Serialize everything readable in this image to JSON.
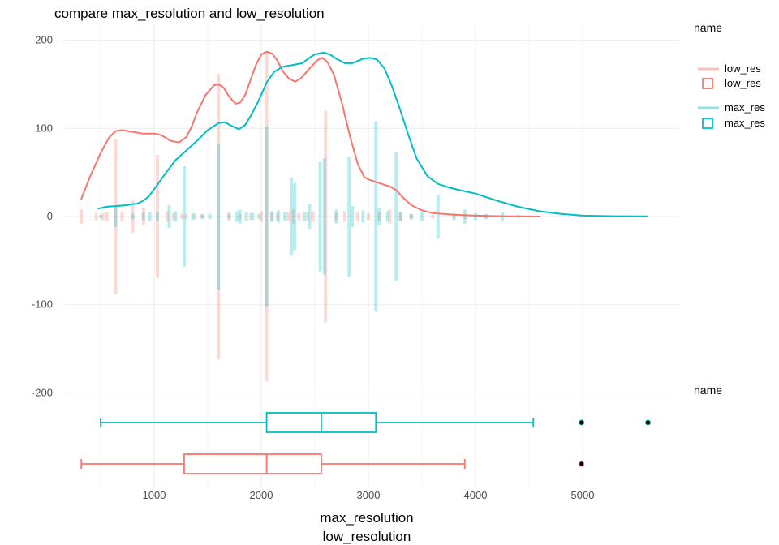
{
  "chart_data": {
    "type": "density_strip_box",
    "title": "compare  max_resolution and low_resolution",
    "xlabel_top": "max_resolution",
    "xlabel_bottom": "low_resolution",
    "xlim": [
      300,
      5700
    ],
    "ylim": [
      -200,
      200
    ],
    "x_ticks": [
      "1000",
      "2000",
      "3000",
      "4000",
      "5000"
    ],
    "y_ticks": [
      "200",
      "100",
      "0",
      "-100",
      "-200"
    ],
    "grid": true,
    "legend": {
      "position": "right",
      "title_top": "name",
      "title_bottom": "name",
      "entries": [
        "low_res",
        "low_res",
        "max_res",
        "max_res"
      ]
    },
    "colors": {
      "low_res": "#F8766D",
      "max_res": "#00BFC4",
      "outlier": "#000000"
    },
    "density": [
      {
        "name": "low_res",
        "points": [
          [
            320,
            20
          ],
          [
            400,
            45
          ],
          [
            500,
            72
          ],
          [
            580,
            90
          ],
          [
            640,
            97
          ],
          [
            700,
            98
          ],
          [
            800,
            96
          ],
          [
            900,
            94
          ],
          [
            1000,
            94
          ],
          [
            1050,
            93
          ],
          [
            1100,
            90
          ],
          [
            1150,
            86
          ],
          [
            1230,
            84
          ],
          [
            1300,
            90
          ],
          [
            1350,
            102
          ],
          [
            1400,
            118
          ],
          [
            1480,
            138
          ],
          [
            1560,
            149
          ],
          [
            1600,
            150
          ],
          [
            1650,
            146
          ],
          [
            1700,
            136
          ],
          [
            1760,
            128
          ],
          [
            1800,
            129
          ],
          [
            1850,
            138
          ],
          [
            1900,
            155
          ],
          [
            1950,
            172
          ],
          [
            2000,
            184
          ],
          [
            2050,
            187
          ],
          [
            2100,
            185
          ],
          [
            2150,
            177
          ],
          [
            2200,
            165
          ],
          [
            2260,
            156
          ],
          [
            2320,
            153
          ],
          [
            2380,
            158
          ],
          [
            2450,
            168
          ],
          [
            2530,
            178
          ],
          [
            2570,
            180
          ],
          [
            2620,
            175
          ],
          [
            2680,
            160
          ],
          [
            2750,
            130
          ],
          [
            2830,
            90
          ],
          [
            2900,
            60
          ],
          [
            2960,
            45
          ],
          [
            3000,
            42
          ],
          [
            3100,
            38
          ],
          [
            3200,
            34
          ],
          [
            3260,
            30
          ],
          [
            3320,
            22
          ],
          [
            3400,
            13
          ],
          [
            3500,
            7
          ],
          [
            3600,
            4
          ],
          [
            3800,
            2
          ],
          [
            4000,
            1
          ],
          [
            4200,
            0.5
          ],
          [
            4600,
            0
          ]
        ]
      },
      {
        "name": "max_res",
        "points": [
          [
            480,
            9
          ],
          [
            550,
            11
          ],
          [
            650,
            12
          ],
          [
            750,
            13
          ],
          [
            850,
            15
          ],
          [
            900,
            18
          ],
          [
            950,
            23
          ],
          [
            1000,
            31
          ],
          [
            1100,
            48
          ],
          [
            1200,
            64
          ],
          [
            1300,
            75
          ],
          [
            1400,
            86
          ],
          [
            1500,
            98
          ],
          [
            1600,
            106
          ],
          [
            1660,
            107
          ],
          [
            1720,
            103
          ],
          [
            1790,
            99
          ],
          [
            1850,
            104
          ],
          [
            1900,
            114
          ],
          [
            1970,
            130
          ],
          [
            2050,
            152
          ],
          [
            2120,
            164
          ],
          [
            2200,
            170
          ],
          [
            2300,
            172
          ],
          [
            2380,
            174
          ],
          [
            2450,
            180
          ],
          [
            2500,
            184
          ],
          [
            2580,
            186
          ],
          [
            2640,
            184
          ],
          [
            2700,
            179
          ],
          [
            2780,
            174
          ],
          [
            2850,
            174
          ],
          [
            2950,
            179
          ],
          [
            3020,
            180
          ],
          [
            3080,
            178
          ],
          [
            3150,
            168
          ],
          [
            3220,
            148
          ],
          [
            3300,
            120
          ],
          [
            3380,
            90
          ],
          [
            3450,
            66
          ],
          [
            3550,
            46
          ],
          [
            3650,
            37
          ],
          [
            3750,
            33
          ],
          [
            3850,
            30
          ],
          [
            4000,
            26
          ],
          [
            4200,
            18
          ],
          [
            4400,
            11
          ],
          [
            4600,
            6
          ],
          [
            4800,
            3
          ],
          [
            5000,
            1
          ],
          [
            5300,
            0.4
          ],
          [
            5600,
            0.2
          ]
        ]
      }
    ],
    "strips": [
      {
        "name": "low_res",
        "marks": [
          [
            320,
            8
          ],
          [
            460,
            4
          ],
          [
            520,
            4
          ],
          [
            560,
            5
          ],
          [
            640,
            88
          ],
          [
            700,
            6
          ],
          [
            800,
            18
          ],
          [
            900,
            10
          ],
          [
            1030,
            70
          ],
          [
            1120,
            6
          ],
          [
            1180,
            4
          ],
          [
            1260,
            3
          ],
          [
            1300,
            3
          ],
          [
            1380,
            3
          ],
          [
            1450,
            2
          ],
          [
            1600,
            162
          ],
          [
            1700,
            5
          ],
          [
            1800,
            3
          ],
          [
            1900,
            4
          ],
          [
            2000,
            6
          ],
          [
            2050,
            187
          ],
          [
            2100,
            5
          ],
          [
            2150,
            4
          ],
          [
            2250,
            5
          ],
          [
            2300,
            8
          ],
          [
            2350,
            4
          ],
          [
            2430,
            5
          ],
          [
            2480,
            6
          ],
          [
            2600,
            120
          ],
          [
            2700,
            4
          ],
          [
            2780,
            6
          ],
          [
            2900,
            5
          ],
          [
            3000,
            4
          ],
          [
            3100,
            5
          ],
          [
            3200,
            8
          ],
          [
            3300,
            5
          ],
          [
            3400,
            3
          ],
          [
            3600,
            2
          ],
          [
            3800,
            2
          ],
          [
            3900,
            3
          ],
          [
            4100,
            2
          ],
          [
            4500,
            1
          ]
        ]
      },
      {
        "name": "max_res",
        "marks": [
          [
            500,
            2
          ],
          [
            640,
            12
          ],
          [
            800,
            3
          ],
          [
            900,
            4
          ],
          [
            960,
            5
          ],
          [
            1030,
            5
          ],
          [
            1140,
            13
          ],
          [
            1200,
            6
          ],
          [
            1280,
            57
          ],
          [
            1360,
            4
          ],
          [
            1450,
            3
          ],
          [
            1520,
            3
          ],
          [
            1600,
            83
          ],
          [
            1700,
            3
          ],
          [
            1770,
            6
          ],
          [
            1800,
            8
          ],
          [
            1860,
            5
          ],
          [
            1920,
            4
          ],
          [
            1980,
            3
          ],
          [
            2050,
            102
          ],
          [
            2100,
            6
          ],
          [
            2160,
            7
          ],
          [
            2220,
            5
          ],
          [
            2280,
            44
          ],
          [
            2310,
            38
          ],
          [
            2400,
            5
          ],
          [
            2450,
            14
          ],
          [
            2550,
            62
          ],
          [
            2590,
            66
          ],
          [
            2700,
            8
          ],
          [
            2820,
            68
          ],
          [
            2850,
            12
          ],
          [
            2950,
            7
          ],
          [
            3070,
            108
          ],
          [
            3100,
            10
          ],
          [
            3180,
            6
          ],
          [
            3260,
            73
          ],
          [
            3300,
            5
          ],
          [
            3400,
            3
          ],
          [
            3500,
            5
          ],
          [
            3650,
            25
          ],
          [
            3800,
            4
          ],
          [
            3900,
            8
          ],
          [
            4000,
            4
          ],
          [
            4100,
            3
          ],
          [
            4250,
            5
          ],
          [
            4400,
            2
          ]
        ]
      }
    ],
    "boxplots": [
      {
        "name": "max_res",
        "min": 500,
        "q1": 2050,
        "median": 2560,
        "q3": 3070,
        "max": 4540,
        "outliers": [
          4990,
          5610
        ]
      },
      {
        "name": "low_res",
        "min": 320,
        "q1": 1280,
        "median": 2050,
        "q3": 2560,
        "max": 3900,
        "outliers": [
          4990
        ]
      }
    ]
  }
}
